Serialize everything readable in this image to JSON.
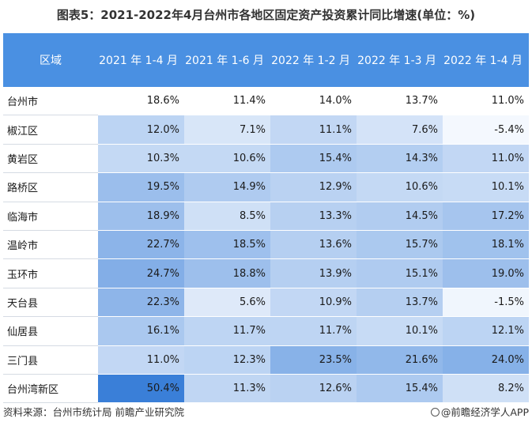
{
  "title": "图表5：2021-2022年4月台州市各地区固定资产投资累计同比增速(单位：%)",
  "table": {
    "headers": [
      "区域",
      "2021 年 1-4 月",
      "2021 年 1-6 月",
      "2022 年 1-2 月",
      "2022 年 1-3 月",
      "2022 年 1-4 月"
    ],
    "rows": [
      {
        "region": "台州市",
        "values": [
          "18.6%",
          "11.4%",
          "14.0%",
          "13.7%",
          "11.0%"
        ],
        "shades": [
          0,
          0,
          0,
          0,
          0
        ]
      },
      {
        "region": "椒江区",
        "values": [
          "12.0%",
          "7.1%",
          "11.1%",
          "7.6%",
          "-5.4%"
        ],
        "shades": [
          0.3,
          0.15,
          0.27,
          0.17,
          0.0
        ]
      },
      {
        "region": "黄岩区",
        "values": [
          "10.3%",
          "10.6%",
          "15.4%",
          "14.3%",
          "11.0%"
        ],
        "shades": [
          0.26,
          0.26,
          0.38,
          0.35,
          0.27
        ]
      },
      {
        "region": "路桥区",
        "values": [
          "19.5%",
          "14.9%",
          "12.9%",
          "10.6%",
          "10.1%"
        ],
        "shades": [
          0.48,
          0.37,
          0.31,
          0.26,
          0.24
        ]
      },
      {
        "region": "临海市",
        "values": [
          "18.9%",
          "8.5%",
          "13.3%",
          "14.5%",
          "17.2%"
        ],
        "shades": [
          0.47,
          0.2,
          0.33,
          0.36,
          0.42
        ]
      },
      {
        "region": "温岭市",
        "values": [
          "22.7%",
          "18.5%",
          "13.6%",
          "15.7%",
          "18.1%"
        ],
        "shades": [
          0.56,
          0.46,
          0.34,
          0.39,
          0.45
        ]
      },
      {
        "region": "玉环市",
        "values": [
          "24.7%",
          "18.8%",
          "13.9%",
          "15.1%",
          "19.0%"
        ],
        "shades": [
          0.61,
          0.47,
          0.34,
          0.37,
          0.47
        ]
      },
      {
        "region": "天台县",
        "values": [
          "22.3%",
          "5.6%",
          "10.9%",
          "13.7%",
          "-1.5%"
        ],
        "shades": [
          0.55,
          0.12,
          0.27,
          0.34,
          0.02
        ]
      },
      {
        "region": "仙居县",
        "values": [
          "16.1%",
          "11.7%",
          "11.7%",
          "10.1%",
          "12.1%"
        ],
        "shades": [
          0.4,
          0.29,
          0.29,
          0.24,
          0.3
        ]
      },
      {
        "region": "三门县",
        "values": [
          "11.0%",
          "12.3%",
          "23.5%",
          "21.6%",
          "24.0%"
        ],
        "shades": [
          0.27,
          0.3,
          0.58,
          0.53,
          0.59
        ]
      },
      {
        "region": "台州湾新区",
        "values": [
          "50.4%",
          "11.3%",
          "12.6%",
          "15.4%",
          "8.2%"
        ],
        "shades": [
          1.0,
          0.28,
          0.31,
          0.38,
          0.2
        ]
      }
    ]
  },
  "footer": {
    "source": "资料来源：台州市统计局 前瞻产业研究院",
    "brand": "@前瞻经济学人APP"
  },
  "colors": {
    "header_bg": "#4a90e2",
    "scale_low": "#f4f8fe",
    "scale_high": "#3a7fd8"
  }
}
